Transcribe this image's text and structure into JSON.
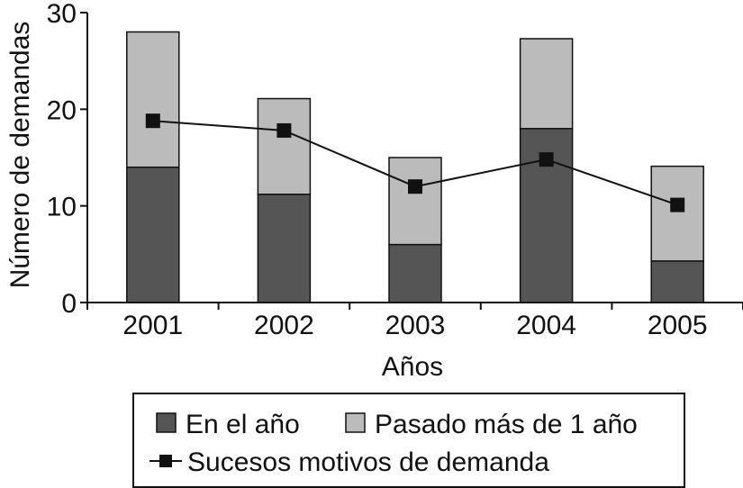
{
  "chart_data": {
    "type": "bar",
    "stacked": true,
    "categories": [
      "2001",
      "2002",
      "2003",
      "2004",
      "2005"
    ],
    "series": [
      {
        "name": "En el año",
        "kind": "bar",
        "color": "#555555",
        "values": [
          14,
          11.2,
          6,
          18,
          4.3
        ]
      },
      {
        "name": "Pasado más de 1 año",
        "kind": "bar",
        "color": "#bbbbbb",
        "values": [
          14,
          9.9,
          9,
          9.3,
          9.8
        ]
      },
      {
        "name": "Sucesos motivos de demanda",
        "kind": "line",
        "color": "#111111",
        "values": [
          18.8,
          17.8,
          12,
          14.8,
          10.1
        ]
      }
    ],
    "xlabel": "Años",
    "ylabel": "Número de demandas",
    "ylim": [
      0,
      30
    ],
    "yticks": [
      "0",
      "10",
      "20",
      "30"
    ],
    "grid": false,
    "legend_position": "bottom"
  }
}
